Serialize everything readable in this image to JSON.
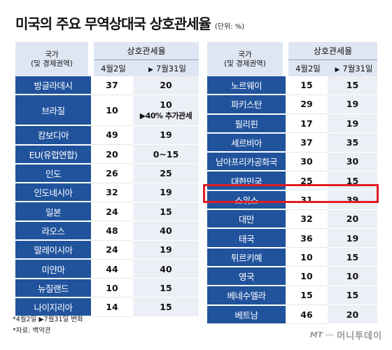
{
  "title": "미국의 주요 무역상대국 상호관세율",
  "unit": "(단위: %)",
  "headers": {
    "country_line1": "국가",
    "country_line2": "(및 경제권역)",
    "rate_group": "상호관세율",
    "col_apr": "4월2일",
    "arrow": "▶",
    "col_jul": "7월31일"
  },
  "left_rows": [
    {
      "country": "방글라데시",
      "apr": "37",
      "jul": "20"
    },
    {
      "country": "브라질",
      "apr": "10",
      "jul": "10",
      "jul_note": "▶40% 추가관세"
    },
    {
      "country": "캄보디아",
      "apr": "49",
      "jul": "19"
    },
    {
      "country": "EU(유럽연합)",
      "apr": "20",
      "jul": "0~15"
    },
    {
      "country": "인도",
      "apr": "26",
      "jul": "25"
    },
    {
      "country": "인도네시아",
      "apr": "32",
      "jul": "19"
    },
    {
      "country": "일본",
      "apr": "24",
      "jul": "15"
    },
    {
      "country": "라오스",
      "apr": "48",
      "jul": "40"
    },
    {
      "country": "말레이시아",
      "apr": "24",
      "jul": "19"
    },
    {
      "country": "미얀마",
      "apr": "44",
      "jul": "40"
    },
    {
      "country": "뉴질랜드",
      "apr": "10",
      "jul": "15"
    },
    {
      "country": "나이지리아",
      "apr": "14",
      "jul": "15"
    }
  ],
  "right_rows": [
    {
      "country": "노르웨이",
      "apr": "15",
      "jul": "15"
    },
    {
      "country": "파키스탄",
      "apr": "29",
      "jul": "19"
    },
    {
      "country": "필리핀",
      "apr": "17",
      "jul": "19"
    },
    {
      "country": "세르비아",
      "apr": "37",
      "jul": "35"
    },
    {
      "country": "남아프리카공화국",
      "apr": "30",
      "jul": "30"
    },
    {
      "country": "대한민국",
      "apr": "25",
      "jul": "15"
    },
    {
      "country": "스위스",
      "apr": "31",
      "jul": "39"
    },
    {
      "country": "대만",
      "apr": "32",
      "jul": "20"
    },
    {
      "country": "태국",
      "apr": "36",
      "jul": "19"
    },
    {
      "country": "튀르키예",
      "apr": "10",
      "jul": "15"
    },
    {
      "country": "영국",
      "apr": "10",
      "jul": "10"
    },
    {
      "country": "베네수엘라",
      "apr": "15",
      "jul": "15"
    },
    {
      "country": "베트남",
      "apr": "46",
      "jul": "20"
    }
  ],
  "footnote1": "*4월2일 ▶7월31일 변화",
  "footnote2": "*자료: 백악관",
  "logo": {
    "mark": "MT",
    "name": "머니투데이"
  },
  "colors": {
    "header_bg": "#dfe6f3",
    "country_bg": "#21539d",
    "highlight": "#e11c22",
    "col2_bg": "#eceff5"
  }
}
